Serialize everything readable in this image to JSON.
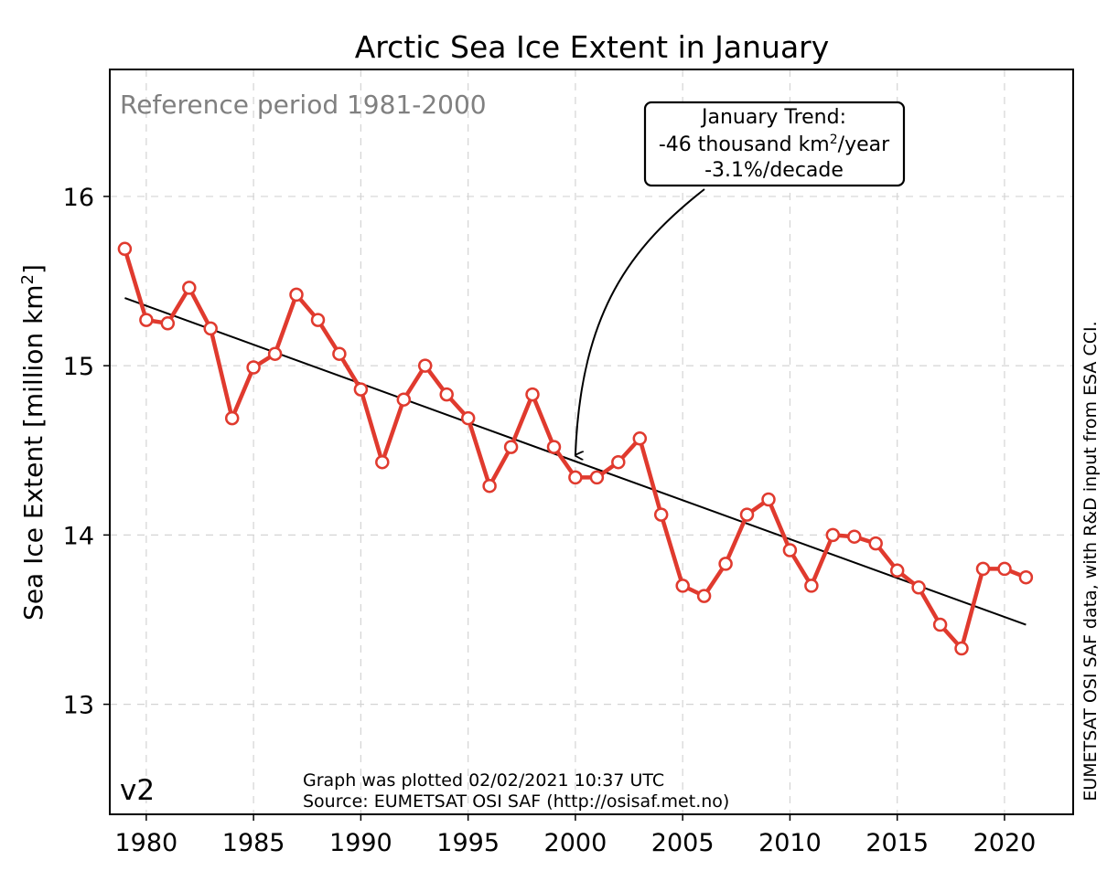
{
  "chart_data": {
    "type": "line",
    "title": "Arctic Sea Ice Extent in January",
    "ylabel": "Sea Ice Extent [million km²]",
    "xlim": [
      1978.3,
      2023.2
    ],
    "ylim": [
      12.35,
      16.75
    ],
    "grid": true,
    "x_ticks": [
      1980,
      1985,
      1990,
      1995,
      2000,
      2005,
      2010,
      2015,
      2020
    ],
    "y_ticks": [
      13,
      14,
      15,
      16
    ],
    "series": [
      {
        "color": "#e03a2e",
        "marker": "open-circle",
        "x": [
          1979,
          1980,
          1981,
          1982,
          1983,
          1984,
          1985,
          1986,
          1987,
          1988,
          1989,
          1990,
          1991,
          1992,
          1993,
          1994,
          1995,
          1996,
          1997,
          1998,
          1999,
          2000,
          2001,
          2002,
          2003,
          2004,
          2005,
          2006,
          2007,
          2008,
          2009,
          2010,
          2011,
          2012,
          2013,
          2014,
          2015,
          2016,
          2017,
          2018,
          2019,
          2020,
          2021
        ],
        "y": [
          15.69,
          15.27,
          15.25,
          15.46,
          15.22,
          14.69,
          14.99,
          15.07,
          15.42,
          15.27,
          15.07,
          14.86,
          14.43,
          14.8,
          15.0,
          14.83,
          14.69,
          14.29,
          14.52,
          14.83,
          14.52,
          14.34,
          14.34,
          14.43,
          14.57,
          14.12,
          13.7,
          13.64,
          13.83,
          14.12,
          14.21,
          13.91,
          13.7,
          14.0,
          13.99,
          13.95,
          13.79,
          13.69,
          13.47,
          13.33,
          13.8,
          13.8,
          13.75
        ]
      }
    ],
    "trend": {
      "color": "#000000",
      "x": [
        1979,
        2021
      ],
      "y": [
        15.4,
        13.47
      ]
    },
    "annotations": {
      "reference": "Reference period 1981-2000",
      "trend_box": {
        "line1": "January Trend:",
        "line2_prefix": "-46 thousand km",
        "line2_sup": "2",
        "line2_suffix": "/year",
        "line3": "-3.1%/decade",
        "arrow_target": [
          2000,
          14.46
        ]
      },
      "version": "v2",
      "plotted": "Graph was plotted 02/02/2021 10:37 UTC",
      "source": "Source: EUMETSAT OSI SAF (http://osisaf.met.no)",
      "credit": "EUMETSAT OSI SAF data, with R&D input from ESA CCI."
    }
  }
}
